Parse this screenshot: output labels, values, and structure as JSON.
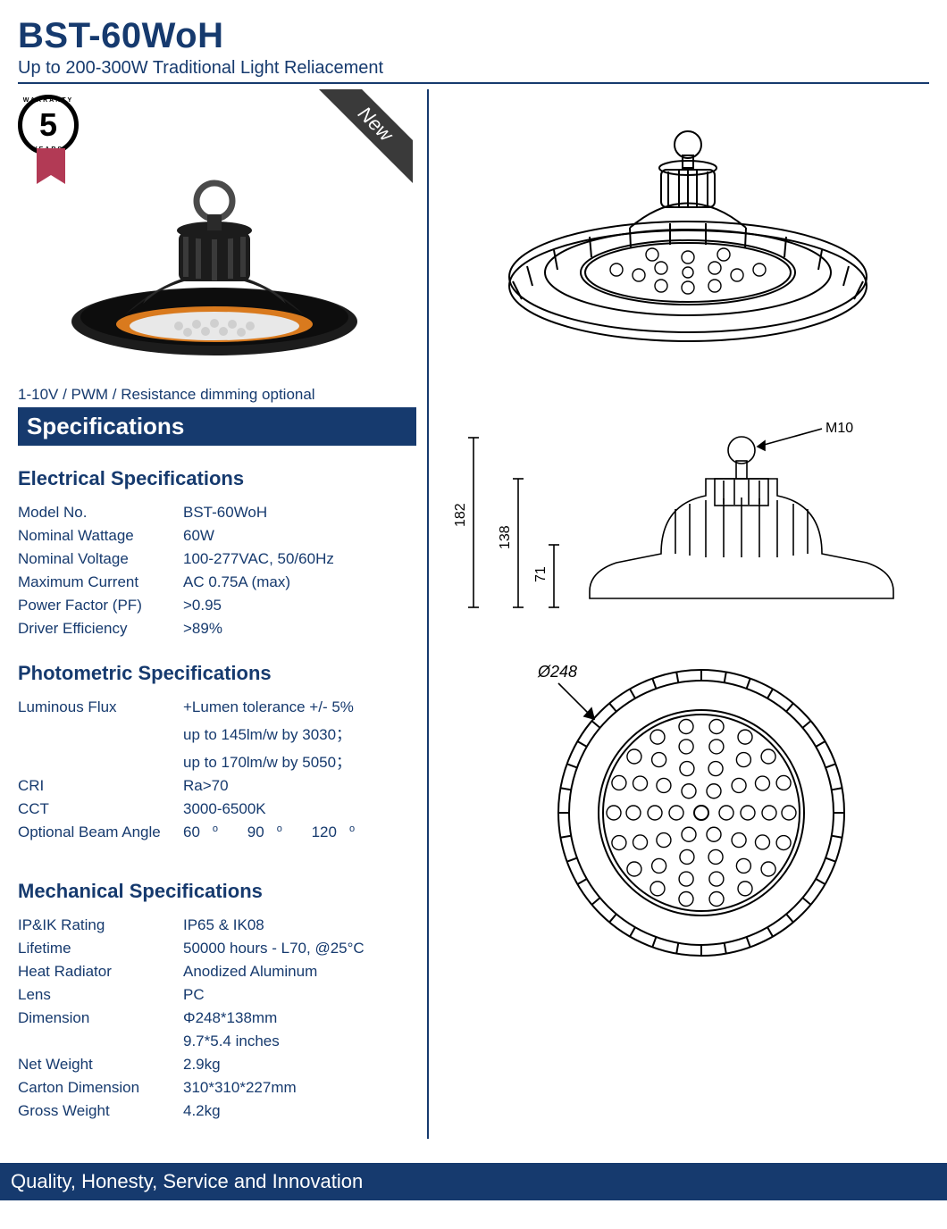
{
  "colors": {
    "primary": "#163a6e",
    "ribbon_bg": "#3a3a3a",
    "warranty_ribbon": "#b23a55",
    "lamp_body": "#1c1c1c",
    "lamp_accent": "#d97a1e",
    "background": "#ffffff"
  },
  "header": {
    "title": "BST-60WoH",
    "subtitle": "Up to 200-300W Traditional Light Reliacement"
  },
  "badges": {
    "warranty_years": "5",
    "new_label": "New"
  },
  "dimming_note": "1-10V / PWM / Resistance dimming optional",
  "sections": {
    "spec_bar": "Specifications",
    "electrical_heading": "Electrical Specifications",
    "photometric_heading": "Photometric Specifications",
    "mechanical_heading": "Mechanical Specifications"
  },
  "electrical": {
    "rows": [
      {
        "label": "Model No.",
        "value": "BST-60WoH"
      },
      {
        "label": "Nominal Wattage",
        "value": "60W"
      },
      {
        "label": "Nominal Voltage",
        "value": "100-277VAC, 50/60Hz"
      },
      {
        "label": "Maximum Current",
        "value": "AC 0.75A (max)"
      },
      {
        "label": "Power Factor (PF)",
        "value": ">0.95"
      },
      {
        "label": "Driver Efficiency",
        "value": ">89%"
      }
    ]
  },
  "photometric": {
    "luminous_flux_label": "Luminous Flux",
    "luminous_flux_lines": [
      "+Lumen tolerance +/- 5%",
      " up to 145lm/w  by 3030；",
      " up to 170lm/w  by 5050；"
    ],
    "cri_label": "CRI",
    "cri_value": "Ra>70",
    "cct_label": "CCT",
    "cct_value": "3000-6500K",
    "beam_label": "Optional Beam Angle",
    "beam_angles": [
      "60",
      "90",
      "120"
    ]
  },
  "mechanical": {
    "rows": [
      {
        "label": "IP&IK Rating",
        "value": "IP65 & IK08"
      },
      {
        "label": "Lifetime",
        "value": "50000 hours - L70, @25°C"
      },
      {
        "label": "Heat Radiator",
        "value": "Anodized Aluminum"
      },
      {
        "label": "Lens",
        "value": "PC"
      },
      {
        "label": "Dimension",
        "value": "Φ248*138mm"
      },
      {
        "label": "",
        "value": "9.7*5.4 inches"
      },
      {
        "label": "Net Weight",
        "value": " 2.9kg"
      },
      {
        "label": "Carton Dimension",
        "value": "310*310*227mm"
      },
      {
        "label": "Gross Weight",
        "value": "4.2kg"
      }
    ]
  },
  "dimensions_drawing": {
    "height_total": "182",
    "height_body": "138",
    "height_lower": "71",
    "thread": "M10",
    "diameter": "Ø248"
  },
  "footer": "Quality, Honesty, Service and Innovation"
}
